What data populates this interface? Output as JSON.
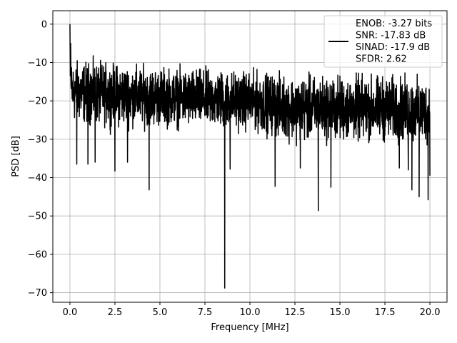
{
  "chart_data": {
    "type": "line",
    "title": "",
    "xlabel": "Frequency [MHz]",
    "ylabel": "PSD [dB]",
    "xlim": [
      -0.95,
      20.95
    ],
    "ylim": [
      -72.5,
      3.5
    ],
    "xticks": [
      0.0,
      2.5,
      5.0,
      7.5,
      10.0,
      12.5,
      15.0,
      17.5,
      20.0
    ],
    "xtick_labels": [
      "0.0",
      "2.5",
      "5.0",
      "7.5",
      "10.0",
      "12.5",
      "15.0",
      "17.5",
      "20.0"
    ],
    "yticks": [
      0,
      -10,
      -20,
      -30,
      -40,
      -50,
      -60,
      -70
    ],
    "ytick_labels": [
      "0",
      "−10",
      "−20",
      "−30",
      "−40",
      "−50",
      "−60",
      "−70"
    ],
    "grid": true,
    "legend_position": "top-right",
    "line_color": "#000000",
    "series": [
      {
        "name": "ENOB: -3.27 bits\nSNR: -17.83 dB\nSINAD: -17.9 dB\nSFDR: 2.62",
        "x_start": 0.0,
        "x_end": 20.0,
        "peak_value": 0.0,
        "noise_envelope_top": [
          [
            0.0,
            -8
          ],
          [
            2.5,
            -9
          ],
          [
            5.0,
            -10
          ],
          [
            10.0,
            -11
          ],
          [
            12.5,
            -12
          ],
          [
            15.0,
            -12
          ],
          [
            17.5,
            -12
          ],
          [
            20.0,
            -13
          ]
        ],
        "noise_envelope_bottom": [
          [
            0.0,
            -27
          ],
          [
            2.5,
            -28
          ],
          [
            5.0,
            -28
          ],
          [
            10.0,
            -29
          ],
          [
            12.5,
            -32
          ],
          [
            15.0,
            -32
          ],
          [
            17.5,
            -32
          ],
          [
            20.0,
            -33
          ]
        ],
        "notable_dips": [
          {
            "x": 0.38,
            "y": -36.5
          },
          {
            "x": 1.0,
            "y": -36.5
          },
          {
            "x": 1.4,
            "y": -36.0
          },
          {
            "x": 2.5,
            "y": -38.3
          },
          {
            "x": 3.2,
            "y": -36.0
          },
          {
            "x": 4.4,
            "y": -43.2
          },
          {
            "x": 8.6,
            "y": -68.8
          },
          {
            "x": 8.9,
            "y": -37.8
          },
          {
            "x": 11.4,
            "y": -42.3
          },
          {
            "x": 12.8,
            "y": -37.5
          },
          {
            "x": 13.8,
            "y": -48.6
          },
          {
            "x": 14.5,
            "y": -42.5
          },
          {
            "x": 18.3,
            "y": -37.5
          },
          {
            "x": 18.8,
            "y": -38.0
          },
          {
            "x": 19.0,
            "y": -43.2
          },
          {
            "x": 19.4,
            "y": -45.0
          },
          {
            "x": 19.9,
            "y": -45.8
          },
          {
            "x": 20.0,
            "y": -39.5
          }
        ]
      }
    ]
  }
}
